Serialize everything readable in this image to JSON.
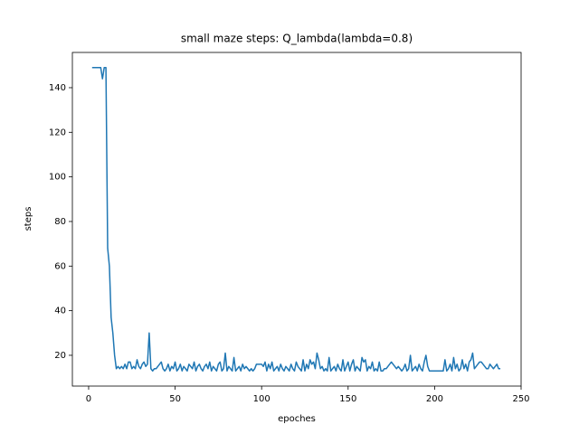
{
  "chart_data": {
    "type": "line",
    "title": "small maze steps: Q_lambda(lambda=0.8)",
    "x_label": "epoches",
    "y_label": "steps",
    "x": [
      2,
      3,
      4,
      5,
      6,
      7,
      8,
      9,
      10,
      11,
      12,
      13,
      14,
      15,
      16,
      17,
      18,
      19,
      20,
      21,
      22,
      23,
      24,
      25,
      26,
      27,
      28,
      29,
      30,
      31,
      32,
      33,
      34,
      35,
      36,
      37,
      38,
      39,
      40,
      41,
      42,
      43,
      44,
      45,
      46,
      47,
      48,
      49,
      50,
      51,
      52,
      53,
      54,
      55,
      56,
      57,
      58,
      59,
      60,
      61,
      62,
      63,
      64,
      65,
      66,
      67,
      68,
      69,
      70,
      71,
      72,
      73,
      74,
      75,
      76,
      77,
      78,
      79,
      80,
      81,
      82,
      83,
      84,
      85,
      86,
      87,
      88,
      89,
      90,
      91,
      92,
      93,
      94,
      95,
      96,
      97,
      98,
      99,
      100,
      101,
      102,
      103,
      104,
      105,
      106,
      107,
      108,
      109,
      110,
      111,
      112,
      113,
      114,
      115,
      116,
      117,
      118,
      119,
      120,
      121,
      122,
      123,
      124,
      125,
      126,
      127,
      128,
      129,
      130,
      131,
      132,
      133,
      134,
      135,
      136,
      137,
      138,
      139,
      140,
      141,
      142,
      143,
      144,
      145,
      146,
      147,
      148,
      149,
      150,
      151,
      152,
      153,
      154,
      155,
      156,
      157,
      158,
      159,
      160,
      161,
      162,
      163,
      164,
      165,
      166,
      167,
      168,
      169,
      170,
      171,
      172,
      173,
      174,
      175,
      176,
      177,
      178,
      179,
      180,
      181,
      182,
      183,
      184,
      185,
      186,
      187,
      188,
      189,
      190,
      191,
      192,
      193,
      194,
      195,
      196,
      197,
      198,
      199,
      200,
      201,
      202,
      203,
      204,
      205,
      206,
      207,
      208,
      209,
      210,
      211,
      212,
      213,
      214,
      215,
      216,
      217,
      218,
      219,
      220,
      221,
      222,
      223,
      224,
      225,
      226,
      227,
      228,
      229,
      230,
      231,
      232,
      233,
      234,
      235,
      236,
      237,
      238
    ],
    "series": [
      {
        "name": "steps",
        "color": "#1f77b4",
        "values": [
          149,
          149,
          149,
          149,
          149,
          149,
          144,
          149,
          149,
          68,
          60,
          37,
          30,
          20,
          14,
          15,
          14,
          15,
          14,
          16,
          14,
          17,
          17,
          14,
          15,
          14,
          18,
          15,
          14,
          16,
          17,
          15,
          16,
          30,
          14,
          13,
          14,
          14,
          15,
          16,
          17,
          14,
          13,
          14,
          16,
          13,
          15,
          14,
          17,
          13,
          14,
          16,
          13,
          15,
          14,
          13,
          16,
          15,
          14,
          17,
          13,
          15,
          16,
          14,
          13,
          15,
          16,
          14,
          17,
          13,
          15,
          14,
          13,
          16,
          17,
          13,
          14,
          21,
          13,
          15,
          14,
          13,
          19,
          13,
          14,
          15,
          13,
          16,
          14,
          15,
          14,
          13,
          14,
          13,
          14,
          16,
          16,
          16,
          16,
          15,
          17,
          13,
          16,
          14,
          17,
          13,
          14,
          15,
          13,
          16,
          14,
          13,
          15,
          14,
          13,
          16,
          14,
          13,
          17,
          15,
          14,
          13,
          18,
          13,
          16,
          14,
          18,
          16,
          17,
          14,
          21,
          18,
          14,
          15,
          13,
          14,
          13,
          19,
          13,
          14,
          15,
          13,
          16,
          14,
          13,
          18,
          13,
          15,
          17,
          13,
          16,
          18,
          13,
          15,
          14,
          13,
          19,
          17,
          18,
          13,
          15,
          14,
          17,
          13,
          14,
          13,
          17,
          13,
          13,
          14,
          14,
          15,
          16,
          17,
          16,
          15,
          14,
          15,
          14,
          13,
          14,
          16,
          13,
          14,
          20,
          13,
          14,
          15,
          13,
          16,
          14,
          13,
          17,
          20,
          15,
          13,
          13,
          13,
          13,
          13,
          13,
          13,
          13,
          13,
          18,
          13,
          14,
          16,
          13,
          19,
          14,
          16,
          13,
          14,
          18,
          14,
          16,
          13,
          17,
          18,
          21,
          14,
          15,
          16,
          17,
          17,
          16,
          15,
          14,
          14,
          16,
          15,
          14,
          15,
          16,
          14,
          14
        ]
      }
    ],
    "xlim": [
      -9.4,
      250
    ],
    "xticks": [
      0,
      50,
      100,
      150,
      200,
      250
    ],
    "ylim": [
      6.2,
      155.8
    ],
    "yticks": [
      20,
      40,
      60,
      80,
      100,
      120,
      140
    ]
  }
}
